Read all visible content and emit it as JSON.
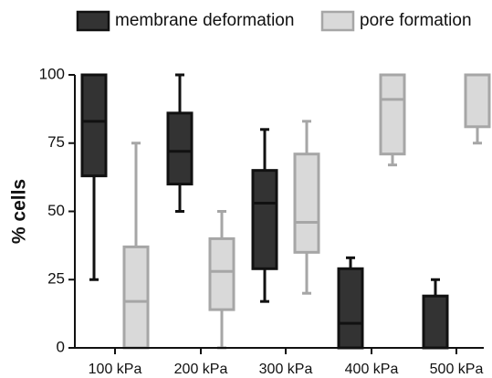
{
  "chart_data": {
    "type": "box",
    "title": "",
    "ylabel": "% cells",
    "xlabel": "",
    "ylim": [
      0,
      100
    ],
    "yticks": [
      0,
      25,
      50,
      75,
      100
    ],
    "categories": [
      "100 kPa",
      "200 kPa",
      "300 kPa",
      "400 kPa",
      "500 kPa"
    ],
    "legend_position": "top",
    "series": [
      {
        "name": "membrane deformation",
        "color": "#333333",
        "boxes": [
          {
            "min": 25,
            "q1": 63,
            "median": 83,
            "q3": 100,
            "max": 100
          },
          {
            "min": 50,
            "q1": 60,
            "median": 72,
            "q3": 86,
            "max": 100
          },
          {
            "min": 17,
            "q1": 29,
            "median": 53,
            "q3": 65,
            "max": 80
          },
          {
            "min": 0,
            "q1": 0,
            "median": 9,
            "q3": 29,
            "max": 33
          },
          {
            "min": 0,
            "q1": 0,
            "median": 0,
            "q3": 19,
            "max": 25
          }
        ]
      },
      {
        "name": "pore formation",
        "color": "#d9d9d9",
        "stroke": "#a6a6a6",
        "boxes": [
          {
            "min": 0,
            "q1": 0,
            "median": 17,
            "q3": 37,
            "max": 75
          },
          {
            "min": 0,
            "q1": 14,
            "median": 28,
            "q3": 40,
            "max": 50
          },
          {
            "min": 20,
            "q1": 35,
            "median": 46,
            "q3": 71,
            "max": 83
          },
          {
            "min": 67,
            "q1": 71,
            "median": 91,
            "q3": 100,
            "max": 100
          },
          {
            "min": 75,
            "q1": 81,
            "median": 100,
            "q3": 100,
            "max": 100
          }
        ]
      }
    ]
  }
}
